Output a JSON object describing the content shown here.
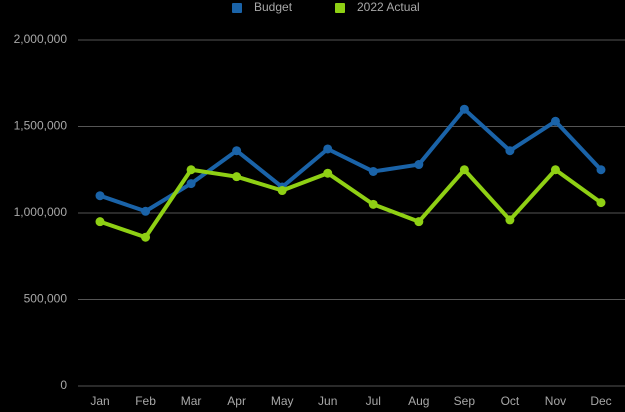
{
  "chart_data": {
    "type": "line",
    "categories": [
      "Jan",
      "Feb",
      "Mar",
      "Apr",
      "May",
      "Jun",
      "Jul",
      "Aug",
      "Sep",
      "Oct",
      "Nov",
      "Dec"
    ],
    "series": [
      {
        "name": "Budget",
        "color": "#1a63a8",
        "values": [
          1100000,
          1010000,
          1170000,
          1360000,
          1150000,
          1370000,
          1240000,
          1280000,
          1600000,
          1360000,
          1530000,
          1250000
        ]
      },
      {
        "name": "2022 Actual",
        "color": "#8fd014",
        "values": [
          950000,
          860000,
          1250000,
          1210000,
          1130000,
          1230000,
          1050000,
          950000,
          1250000,
          960000,
          1250000,
          1060000
        ]
      }
    ],
    "ylim": [
      0,
      2000000
    ],
    "yticks": [
      0,
      {
        "value": 500000,
        "label": "500,000"
      },
      {
        "value": 1000000,
        "label": "1,000,000"
      },
      {
        "value": 1500000,
        "label": "1,500,000"
      },
      {
        "value": 2000000,
        "label": "2,000,000"
      }
    ],
    "grid": true,
    "legend": "top"
  }
}
